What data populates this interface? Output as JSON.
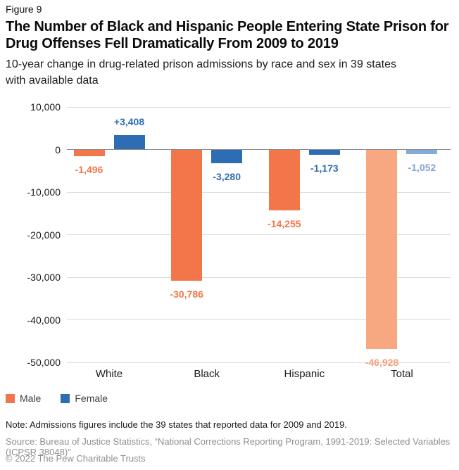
{
  "figure_label": "Figure 9",
  "title_lines": [
    "The Number of Black and Hispanic People Entering State Prison for",
    "Drug Offenses Fell Dramatically From 2009 to 2019"
  ],
  "subtitle_lines": [
    "10-year change in drug-related prison admissions by race and sex in 39 states",
    "with available data"
  ],
  "chart_data": {
    "type": "bar",
    "title": "The Number of Black and Hispanic People Entering State Prison for Drug Offenses Fell Dramatically From 2009 to 2019",
    "subtitle": "10-year change in drug-related prison admissions by race and sex in 39 states with available data",
    "categories": [
      "White",
      "Black",
      "Hispanic",
      "Total"
    ],
    "series": [
      {
        "name": "Male",
        "values": [
          -1496,
          -30786,
          -14255,
          -46928
        ],
        "data_labels": [
          "-1,496",
          "-30,786",
          "-14,255",
          "-46,928"
        ],
        "bar_colors": [
          "#F2764A",
          "#F2764A",
          "#F2764A",
          "#F7A881"
        ],
        "label_colors": [
          "#F2764A",
          "#F2764A",
          "#F2764A",
          "#F59F78"
        ]
      },
      {
        "name": "Female",
        "values": [
          3408,
          -3280,
          -1173,
          -1052
        ],
        "data_labels": [
          "+3,408",
          "-3,280",
          "-1,173",
          "-1,052"
        ],
        "bar_colors": [
          "#2E6DB4",
          "#2E6DB4",
          "#2E6DB4",
          "#84ACDB"
        ],
        "label_colors": [
          "#2E6DB4",
          "#2E6DB4",
          "#2E6DB4",
          "#7FA5D6"
        ]
      }
    ],
    "y_axis": {
      "range": [
        -50000,
        10000
      ],
      "ticks": [
        {
          "value": 10000,
          "label": "10,000"
        },
        {
          "value": 0,
          "label": "0"
        },
        {
          "value": -10000,
          "label": "-10,000"
        },
        {
          "value": -20000,
          "label": "-20,000"
        },
        {
          "value": -30000,
          "label": "-30,000"
        },
        {
          "value": -40000,
          "label": "-40,000"
        },
        {
          "value": -50000,
          "label": "-50,000"
        }
      ]
    },
    "grid": "horizontal",
    "legend_position": "bottom-left"
  },
  "legend": {
    "items": [
      {
        "label": "Male",
        "color": "#F2764A"
      },
      {
        "label": "Female",
        "color": "#2E6DB4"
      }
    ]
  },
  "footer": {
    "note": "Note: Admissions figures include the 39 states that reported data for 2009 and 2019.",
    "source": "Source: Bureau of Justice Statistics, “National Corrections Reporting Program, 1991-2019: Selected Variables (ICPSR 38048)”",
    "copyright": "© 2022 The Pew Charitable Trusts"
  }
}
